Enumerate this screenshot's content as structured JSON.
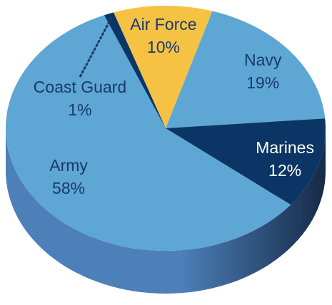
{
  "chart_data": {
    "type": "pie",
    "style": "3d",
    "title": "",
    "legend": "none",
    "slices": [
      {
        "label": "Air Force",
        "value": 10,
        "value_label": "10%",
        "color": "#f6c244",
        "text_color": "#173a6b"
      },
      {
        "label": "Navy",
        "value": 19,
        "value_label": "19%",
        "color": "#5ea6d4",
        "text_color": "#173a6b"
      },
      {
        "label": "Marines",
        "value": 12,
        "value_label": "12%",
        "color": "#0b3565",
        "text_color": "#ffffff"
      },
      {
        "label": "Army",
        "value": 58,
        "value_label": "58%",
        "color": "#5ea6d4",
        "text_color": "#173a6b"
      },
      {
        "label": "Coast Guard",
        "value": 1,
        "value_label": "1%",
        "color": "#0b3565",
        "text_color": "#173a6b"
      }
    ],
    "colors": {
      "side_light": "#4d7fb8",
      "side_dark": "#162a48",
      "leader_line": "#173a6b"
    }
  }
}
